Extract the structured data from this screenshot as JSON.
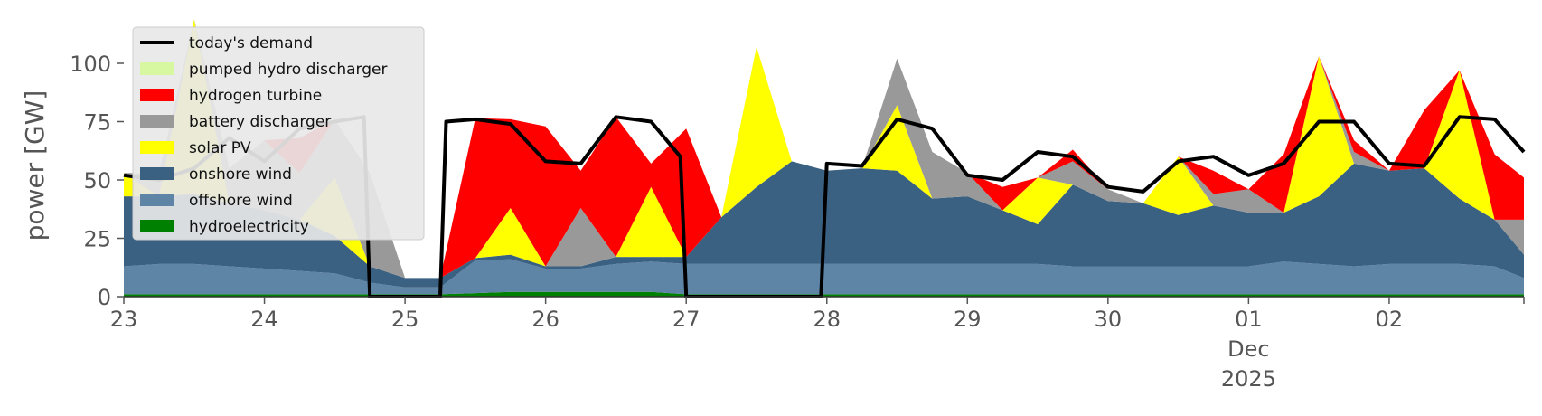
{
  "chart_data": {
    "type": "area",
    "ylabel": "power [GW]",
    "xlabel": "",
    "ylim": [
      0,
      120
    ],
    "y_ticks": [
      "0",
      "25",
      "50",
      "75",
      "100"
    ],
    "x_range": [
      "2025-11-23T00:00",
      "2025-12-02T23:00"
    ],
    "x_ticks": [
      {
        "date": "2025-11-23",
        "label": "23"
      },
      {
        "date": "2025-11-24",
        "label": "24"
      },
      {
        "date": "2025-11-25",
        "label": "25"
      },
      {
        "date": "2025-11-26",
        "label": "26"
      },
      {
        "date": "2025-11-27",
        "label": "27"
      },
      {
        "date": "2025-11-28",
        "label": "28"
      },
      {
        "date": "2025-11-29",
        "label": "29"
      },
      {
        "date": "2025-11-30",
        "label": "30"
      },
      {
        "date": "2025-12-01",
        "label": "01"
      },
      {
        "date": "2025-12-02",
        "label": "02"
      }
    ],
    "x_sublabels": [
      "Dec",
      "2025"
    ],
    "grid": false,
    "legend_position": "top-left",
    "legend": [
      {
        "name": "today's demand",
        "kind": "line",
        "color": "#000000"
      },
      {
        "name": "pumped hydro discharger",
        "kind": "area",
        "color": "#d8f7a1"
      },
      {
        "name": "hydrogen turbine",
        "kind": "area",
        "color": "#ff0000"
      },
      {
        "name": "battery discharger",
        "kind": "area",
        "color": "#999999"
      },
      {
        "name": "solar PV",
        "kind": "area",
        "color": "#ffff00"
      },
      {
        "name": "onshore wind",
        "kind": "area",
        "color": "#3b6182"
      },
      {
        "name": "offshore wind",
        "kind": "area",
        "color": "#5e84a6"
      },
      {
        "name": "hydroelectricity",
        "kind": "area",
        "color": "#008000"
      }
    ],
    "x": [
      "2025-11-23T00:00",
      "2025-11-23T06:00",
      "2025-11-23T12:00",
      "2025-11-23T18:00",
      "2025-11-24T00:00",
      "2025-11-24T06:00",
      "2025-11-24T12:00",
      "2025-11-24T18:00",
      "2025-11-25T00:00",
      "2025-11-25T06:00",
      "2025-11-25T12:00",
      "2025-11-25T18:00",
      "2025-11-26T00:00",
      "2025-11-26T06:00",
      "2025-11-26T12:00",
      "2025-11-26T18:00",
      "2025-11-27T00:00",
      "2025-11-27T06:00",
      "2025-11-27T12:00",
      "2025-11-27T18:00",
      "2025-11-28T00:00",
      "2025-11-28T06:00",
      "2025-11-28T12:00",
      "2025-11-28T18:00",
      "2025-11-29T00:00",
      "2025-11-29T06:00",
      "2025-11-29T12:00",
      "2025-11-29T18:00",
      "2025-11-30T00:00",
      "2025-11-30T06:00",
      "2025-11-30T12:00",
      "2025-11-30T18:00",
      "2025-12-01T00:00",
      "2025-12-01T06:00",
      "2025-12-01T12:00",
      "2025-12-01T18:00",
      "2025-12-02T00:00",
      "2025-12-02T06:00",
      "2025-12-02T12:00",
      "2025-12-02T18:00",
      "2025-12-02T23:00"
    ],
    "series": [
      {
        "name": "hydroelectricity",
        "color": "#008000",
        "values": [
          1,
          1,
          1,
          1,
          1,
          1,
          1,
          1,
          1,
          1,
          1.5,
          2,
          2,
          2,
          2,
          2,
          1,
          1,
          1,
          1,
          1,
          1,
          1,
          1,
          1,
          1,
          1,
          1,
          1,
          1,
          1,
          1,
          1,
          1,
          1,
          1,
          1,
          1,
          1,
          1,
          1
        ]
      },
      {
        "name": "offshore wind",
        "color": "#5e84a6",
        "values": [
          12,
          13,
          13,
          12,
          11,
          10,
          9,
          5,
          3,
          3,
          14,
          14,
          10,
          10,
          12,
          13,
          13,
          13,
          13,
          13,
          13,
          13,
          13,
          13,
          13,
          13,
          13,
          12,
          12,
          12,
          12,
          12,
          12,
          14,
          13,
          12,
          13,
          13,
          13,
          12,
          7
        ]
      },
      {
        "name": "onshore wind",
        "color": "#3b6182",
        "values": [
          30,
          29,
          30,
          27,
          25,
          22,
          16,
          7,
          4,
          4,
          1,
          2,
          1,
          1,
          3,
          2,
          3,
          20,
          33,
          44,
          40,
          41,
          40,
          28,
          29,
          23,
          17,
          35,
          28,
          27,
          22,
          26,
          23,
          21,
          29,
          44,
          40,
          41,
          28,
          20,
          10
        ]
      },
      {
        "name": "solar PV",
        "color": "#ffff00",
        "values": [
          10,
          0,
          75,
          0,
          0,
          0,
          25,
          0,
          0,
          0,
          0,
          20,
          0,
          0,
          0,
          30,
          0,
          0,
          60,
          0,
          0,
          0,
          28,
          0,
          0,
          0,
          20,
          0,
          0,
          0,
          25,
          0,
          0,
          0,
          60,
          0,
          0,
          0,
          55,
          0,
          0
        ]
      },
      {
        "name": "battery discharger",
        "color": "#999999",
        "values": [
          0,
          10,
          0,
          15,
          30,
          20,
          25,
          40,
          0,
          0,
          0,
          0,
          0,
          25,
          0,
          0,
          0,
          0,
          0,
          0,
          0,
          0,
          20,
          20,
          10,
          0,
          0,
          10,
          5,
          0,
          0,
          5,
          10,
          0,
          0,
          5,
          0,
          0,
          0,
          0,
          15
        ]
      },
      {
        "name": "hydrogen turbine",
        "color": "#ff0000",
        "values": [
          0,
          0,
          0,
          0,
          0,
          15,
          0,
          0,
          0,
          0,
          60,
          38,
          60,
          16,
          60,
          10,
          55,
          0,
          0,
          0,
          0,
          0,
          0,
          0,
          0,
          10,
          0,
          5,
          0,
          0,
          0,
          10,
          0,
          25,
          0,
          5,
          0,
          25,
          0,
          28,
          18
        ]
      },
      {
        "name": "pumped hydro discharger",
        "color": "#d8f7a1",
        "values": [
          0,
          0,
          0,
          0,
          0,
          0,
          0,
          0,
          0,
          0,
          0,
          0,
          0,
          0,
          0,
          0,
          0,
          0,
          0,
          0,
          0,
          0,
          0,
          0,
          0,
          0,
          0,
          0,
          0,
          0,
          0,
          0,
          0,
          0,
          0,
          0,
          0,
          0,
          0,
          0,
          0
        ]
      }
    ],
    "demand": {
      "name": "today's demand",
      "x": [
        "2025-11-23T00:00",
        "2025-11-23T06:00",
        "2025-11-23T12:00",
        "2025-11-23T18:00",
        "2025-11-24T00:00",
        "2025-11-24T06:00",
        "2025-11-24T12:00",
        "2025-11-24T17:00",
        "2025-11-24T18:00",
        "2025-11-25T06:00",
        "2025-11-25T07:00",
        "2025-11-25T12:00",
        "2025-11-25T18:00",
        "2025-11-26T00:00",
        "2025-11-26T06:00",
        "2025-11-26T12:00",
        "2025-11-26T18:00",
        "2025-11-26T23:00",
        "2025-11-27T00:00",
        "2025-11-27T23:00",
        "2025-11-28T00:00",
        "2025-11-28T06:00",
        "2025-11-28T12:00",
        "2025-11-28T18:00",
        "2025-11-29T00:00",
        "2025-11-29T06:00",
        "2025-11-29T12:00",
        "2025-11-29T18:00",
        "2025-11-30T00:00",
        "2025-11-30T06:00",
        "2025-11-30T12:00",
        "2025-11-30T18:00",
        "2025-12-01T00:00",
        "2025-12-01T06:00",
        "2025-12-01T12:00",
        "2025-12-01T18:00",
        "2025-12-02T00:00",
        "2025-12-02T06:00",
        "2025-12-02T12:00",
        "2025-12-02T18:00",
        "2025-12-02T23:00"
      ],
      "values": [
        52,
        50,
        55,
        68,
        58,
        72,
        75,
        77,
        0,
        0,
        75,
        76,
        74,
        58,
        57,
        77,
        75,
        60,
        0,
        0,
        57,
        56,
        76,
        72,
        52,
        50,
        62,
        60,
        47,
        45,
        58,
        60,
        52,
        57,
        75,
        75,
        57,
        56,
        77,
        76,
        62
      ]
    }
  }
}
